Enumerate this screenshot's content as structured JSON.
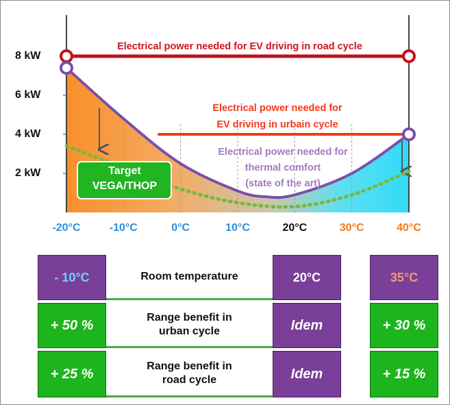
{
  "chart_data": {
    "type": "line",
    "xlim": [
      -20,
      40
    ],
    "ylim": [
      0,
      10
    ],
    "xticks": [
      {
        "value": -20,
        "label": "-20°C"
      },
      {
        "value": -10,
        "label": "-10°C"
      },
      {
        "value": 0,
        "label": "0°C"
      },
      {
        "value": 10,
        "label": "10°C"
      },
      {
        "value": 20,
        "label": "20°C"
      },
      {
        "value": 30,
        "label": "30°C"
      },
      {
        "value": 40,
        "label": "40°C"
      }
    ],
    "xtick_label_colors": [
      "#2f8fdc",
      "#2f8fdc",
      "#2f8fdc",
      "#2f8fdc",
      "#111111",
      "#f07a1a",
      "#f07a1a"
    ],
    "yticks": [
      {
        "value": 2,
        "label": "2 kW"
      },
      {
        "value": 4,
        "label": "4 kW"
      },
      {
        "value": 6,
        "label": "6 kW"
      },
      {
        "value": 8,
        "label": "8 kW"
      }
    ],
    "series": [
      {
        "name": "Electrical power needed for EV driving in road cycle",
        "color": "#c0131b",
        "x": [
          -20,
          40
        ],
        "values": [
          8,
          8
        ]
      },
      {
        "name": "Electrical power needed for EV driving in urbain cycle",
        "color": "#f23a1a",
        "x": [
          -4,
          40
        ],
        "values": [
          4,
          4
        ]
      },
      {
        "name": "Electrical power needed for thermal comfort (state of the art)",
        "color": "#7b4fa8",
        "x": [
          -20,
          -10,
          0,
          10,
          15,
          20,
          30,
          40
        ],
        "values": [
          7.4,
          4.8,
          2.5,
          1.1,
          0.8,
          0.9,
          2.0,
          4.0
        ]
      },
      {
        "name": "Target VEGA/THOP",
        "color": "#79b83a",
        "x": [
          -20,
          -10,
          0,
          10,
          20,
          30,
          40
        ],
        "values": [
          3.4,
          2.3,
          1.2,
          0.5,
          0.3,
          0.9,
          2.1
        ]
      }
    ],
    "annotations": [
      {
        "lines": [
          "Electrical power needed for EV driving in road cycle"
        ],
        "color": "#d0141c"
      },
      {
        "lines": [
          "Electrical power needed for",
          "EV driving in urbain cycle"
        ],
        "color": "#f23a1a"
      },
      {
        "lines": [
          "Electrical power needed for",
          "thermal comfort",
          "(state of the art)"
        ],
        "color": "#a07cc0"
      },
      {
        "lines": [
          "Target",
          "VEGA/THOP"
        ],
        "color": "#ffffff"
      }
    ]
  },
  "table": {
    "rows": [
      [
        "- 10°C",
        "Room temperature",
        "20°C",
        "35°C"
      ],
      [
        "+ 50 %",
        "Range benefit in urban cycle",
        "Idem",
        "+ 30 %"
      ],
      [
        "+ 25 %",
        "Range benefit in road cycle",
        "Idem",
        "+ 15 %"
      ]
    ]
  }
}
